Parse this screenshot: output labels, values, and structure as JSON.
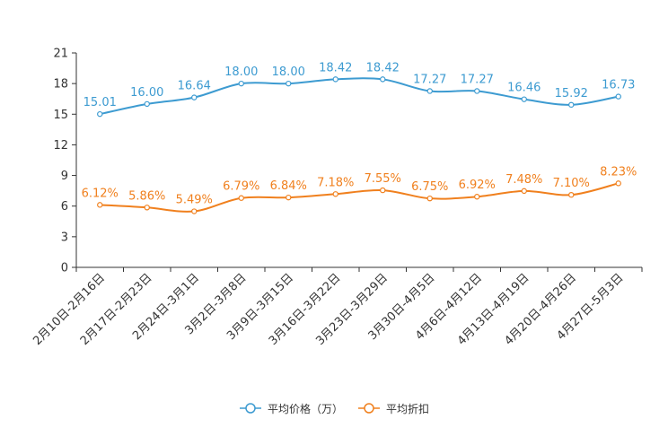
{
  "chart_data": {
    "type": "line",
    "title": "",
    "xlabel": "",
    "ylabel": "",
    "ylim": [
      0,
      21
    ],
    "yticks": [
      0,
      3,
      6,
      9,
      12,
      15,
      18,
      21
    ],
    "categories": [
      "2月10日-2月16日",
      "2月17日-2月23日",
      "2月24日-3月1日",
      "3月2日-3月8日",
      "3月9日-3月15日",
      "3月16日-3月22日",
      "3月23日-3月29日",
      "3月30日-4月5日",
      "4月6日-4月12日",
      "4月13日-4月19日",
      "4月20日-4月26日",
      "4月27日-5月3日"
    ],
    "series": [
      {
        "name": "平均价格（万）",
        "color": "#3d9bd1",
        "values": [
          15.01,
          16.0,
          16.64,
          18.0,
          18.0,
          18.42,
          18.42,
          17.27,
          17.27,
          16.46,
          15.92,
          16.73
        ],
        "labels": [
          "15.01",
          "16.00",
          "16.64",
          "18.00",
          "18.00",
          "18.42",
          "18.42",
          "17.27",
          "17.27",
          "16.46",
          "15.92",
          "16.73"
        ]
      },
      {
        "name": "平均折扣",
        "color": "#f0801e",
        "values": [
          6.12,
          5.86,
          5.49,
          6.79,
          6.84,
          7.18,
          7.55,
          6.75,
          6.92,
          7.48,
          7.1,
          8.23
        ],
        "labels": [
          "6.12%",
          "5.86%",
          "5.49%",
          "6.79%",
          "6.84%",
          "7.18%",
          "7.55%",
          "6.75%",
          "6.92%",
          "7.48%",
          "7.10%",
          "8.23%"
        ]
      }
    ],
    "legend_position": "bottom-center",
    "grid": false
  }
}
